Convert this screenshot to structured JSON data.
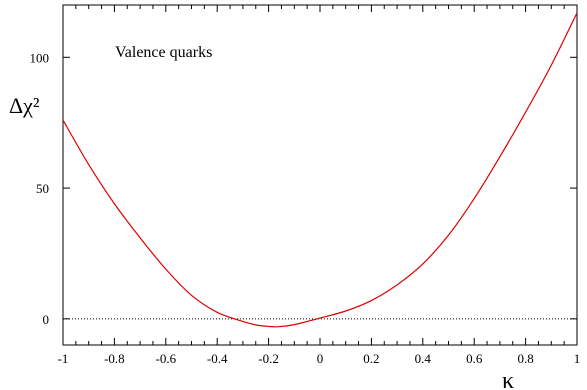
{
  "chart_data": {
    "type": "line",
    "title": "",
    "annotation": "Valence quarks",
    "xlabel": "κ",
    "ylabel": "Δχ²",
    "xlim": [
      -1,
      1
    ],
    "ylim": [
      -10,
      120
    ],
    "xticks": [
      -1,
      -0.8,
      -0.6,
      -0.4,
      -0.2,
      0,
      0.2,
      0.4,
      0.6,
      0.8,
      1
    ],
    "xtick_labels": [
      "-1",
      "-0.8",
      "-0.6",
      "-0.4",
      "-0.2",
      "0",
      "0.2",
      "0.4",
      "0.6",
      "0.8",
      "1"
    ],
    "yticks": [
      0,
      50,
      100
    ],
    "ytick_labels": [
      "0",
      "50",
      "100"
    ],
    "grid": false,
    "reference_line": {
      "y": 0,
      "style": "dotted",
      "color": "#000000"
    },
    "series": [
      {
        "color": "#e00000",
        "x": [
          -1.0,
          -0.9,
          -0.8,
          -0.7,
          -0.6,
          -0.5,
          -0.4,
          -0.3,
          -0.25,
          -0.2,
          -0.16,
          -0.1,
          -0.05,
          0.0,
          0.1,
          0.2,
          0.3,
          0.4,
          0.5,
          0.6,
          0.7,
          0.8,
          0.9,
          1.0
        ],
        "y": [
          76,
          59,
          44,
          31,
          19,
          9,
          2.5,
          -1,
          -2.3,
          -2.9,
          -3.0,
          -2.2,
          -1.0,
          0.3,
          3,
          7,
          13,
          21,
          32,
          46,
          62,
          79,
          97,
          117
        ]
      }
    ]
  }
}
